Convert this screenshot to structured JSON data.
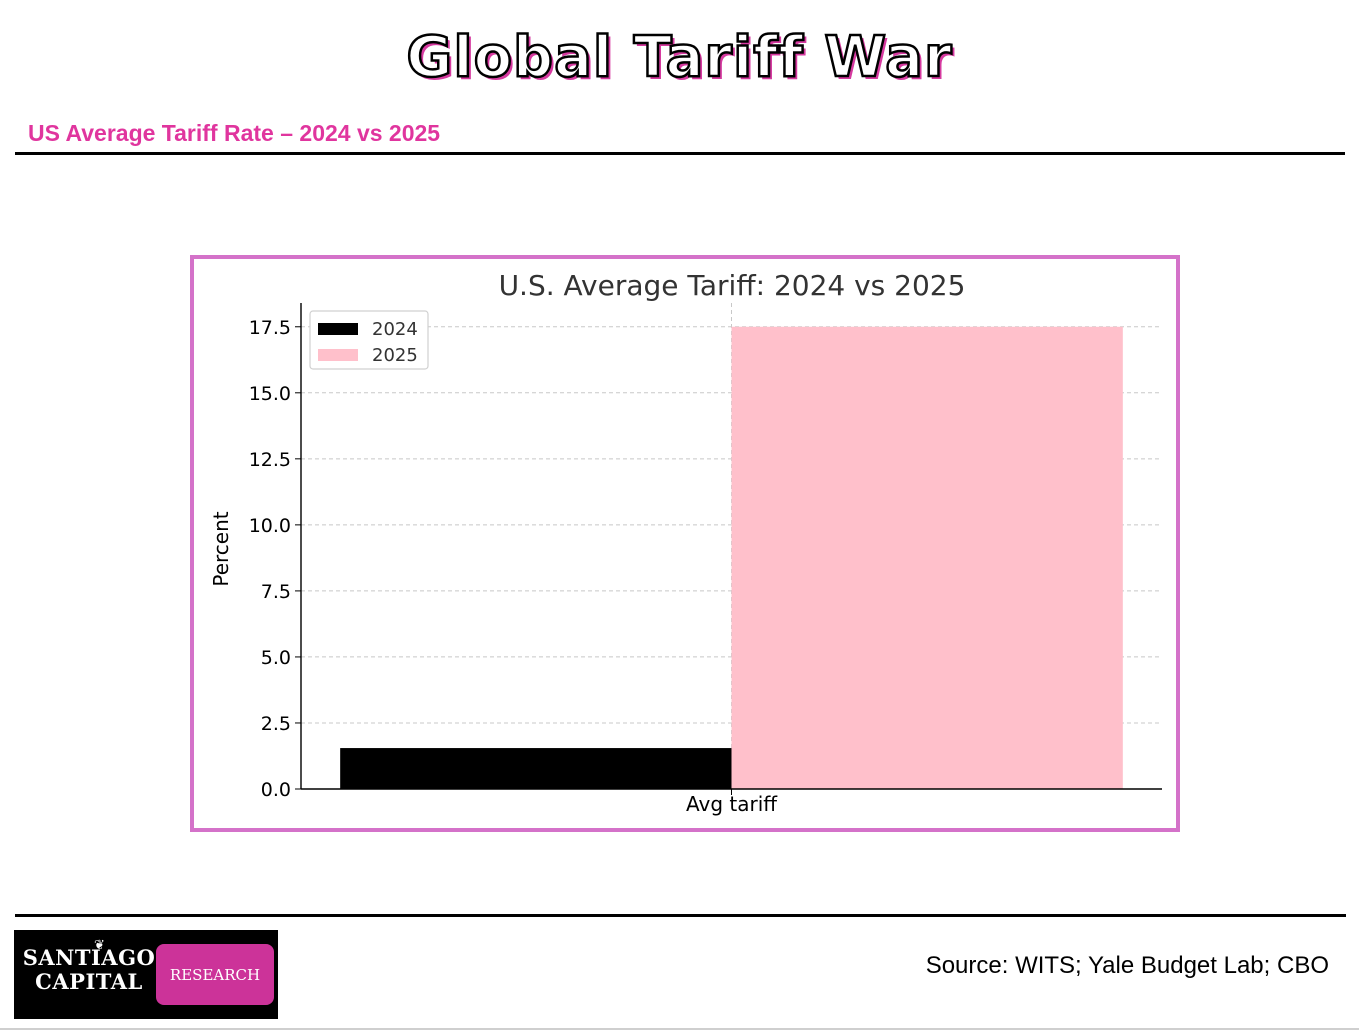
{
  "slide": {
    "title": "Global Tariff War",
    "subtitle": "US Average Tariff Rate – 2024 vs 2025",
    "source": "Source: WITS; Yale Budget Lab; CBO"
  },
  "logo": {
    "line1": "SANTIAGO",
    "line2": "CAPITAL",
    "badge": "RESEARCH"
  },
  "colors": {
    "accent": "#e0359e",
    "frame": "#d472c9",
    "series_2024": "#000000",
    "series_2025": "#ffc0cb"
  },
  "chart_data": {
    "type": "bar",
    "title": "U.S. Average Tariff: 2024 vs 2025",
    "xlabel": "",
    "ylabel": "Percent",
    "categories": [
      "Avg tariff"
    ],
    "series": [
      {
        "name": "2024",
        "values": [
          1.55
        ],
        "color": "#000000"
      },
      {
        "name": "2025",
        "values": [
          17.5
        ],
        "color": "#ffc0cb"
      }
    ],
    "ylim": [
      0,
      18.4
    ],
    "yticks": [
      "0.0",
      "2.5",
      "5.0",
      "7.5",
      "10.0",
      "12.5",
      "15.0",
      "17.5"
    ],
    "grid": true,
    "legend": "top-left"
  }
}
